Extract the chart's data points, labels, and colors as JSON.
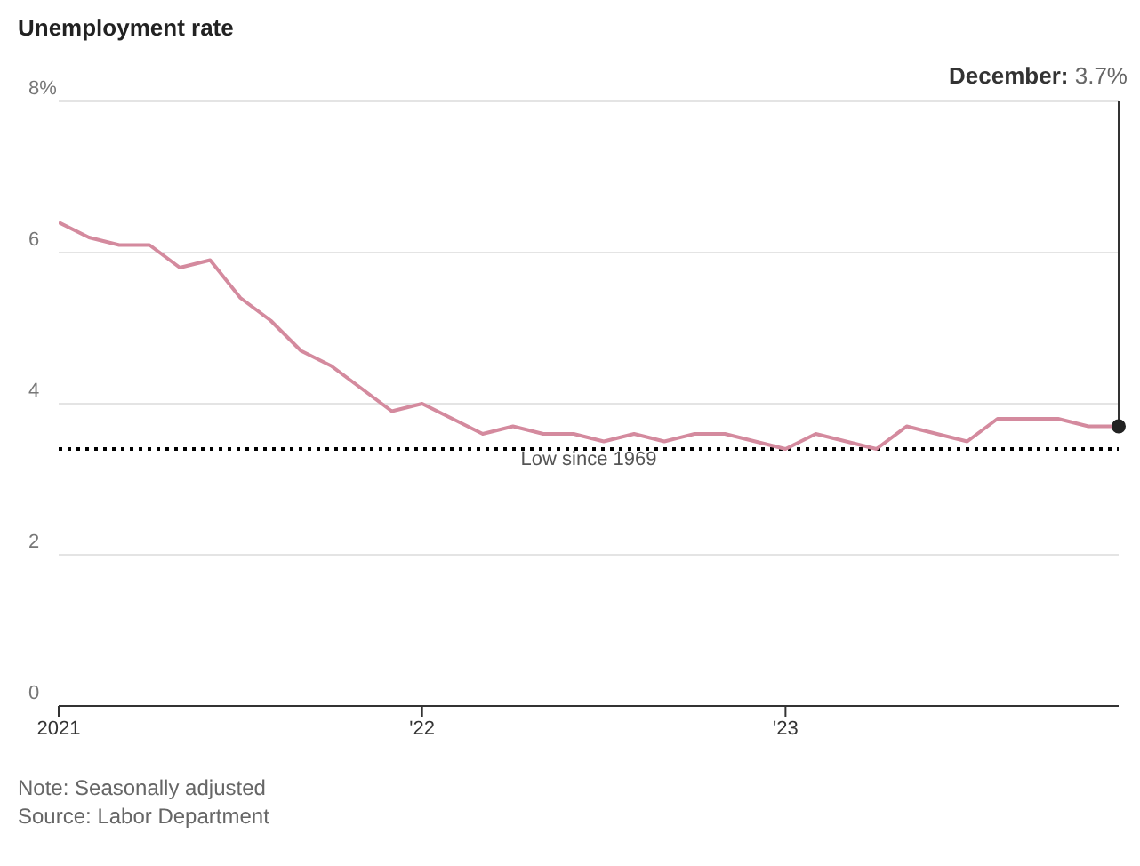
{
  "chart_data": {
    "type": "line",
    "title": "Unemployment rate",
    "x": [
      "2021-01",
      "2021-02",
      "2021-03",
      "2021-04",
      "2021-05",
      "2021-06",
      "2021-07",
      "2021-08",
      "2021-09",
      "2021-10",
      "2021-11",
      "2021-12",
      "2022-01",
      "2022-02",
      "2022-03",
      "2022-04",
      "2022-05",
      "2022-06",
      "2022-07",
      "2022-08",
      "2022-09",
      "2022-10",
      "2022-11",
      "2022-12",
      "2023-01",
      "2023-02",
      "2023-03",
      "2023-04",
      "2023-05",
      "2023-06",
      "2023-07",
      "2023-08",
      "2023-09",
      "2023-10",
      "2023-11",
      "2023-12"
    ],
    "series": [
      {
        "color": "#d48a9e",
        "values": [
          6.4,
          6.2,
          6.1,
          6.1,
          5.8,
          5.9,
          5.4,
          5.1,
          4.7,
          4.5,
          4.2,
          3.9,
          4.0,
          3.8,
          3.6,
          3.7,
          3.6,
          3.6,
          3.5,
          3.6,
          3.5,
          3.6,
          3.6,
          3.5,
          3.4,
          3.6,
          3.5,
          3.4,
          3.7,
          3.6,
          3.5,
          3.8,
          3.8,
          3.8,
          3.7,
          3.7
        ]
      }
    ],
    "xlim": [
      "2021-01",
      "2023-12"
    ],
    "xticks": [
      {
        "value": "2021-01",
        "label": "2021"
      },
      {
        "value": "2022-01",
        "label": "'22"
      },
      {
        "value": "2023-01",
        "label": "'23"
      }
    ],
    "ylim": [
      0,
      8
    ],
    "yticks": [
      0,
      2,
      4,
      6,
      {
        "value": 8,
        "label": "8%"
      }
    ],
    "grid": "y",
    "ref_lines": [
      {
        "axis": "y",
        "value": 3.4,
        "label": "Low since 1969",
        "color": "#000000",
        "line_style": "dotted"
      }
    ],
    "annotations": [
      {
        "text": "December: 3.7%",
        "x": "2023-12",
        "y": 3.7
      },
      "Note: Seasonally adjusted",
      "Source: Labor Department"
    ]
  }
}
